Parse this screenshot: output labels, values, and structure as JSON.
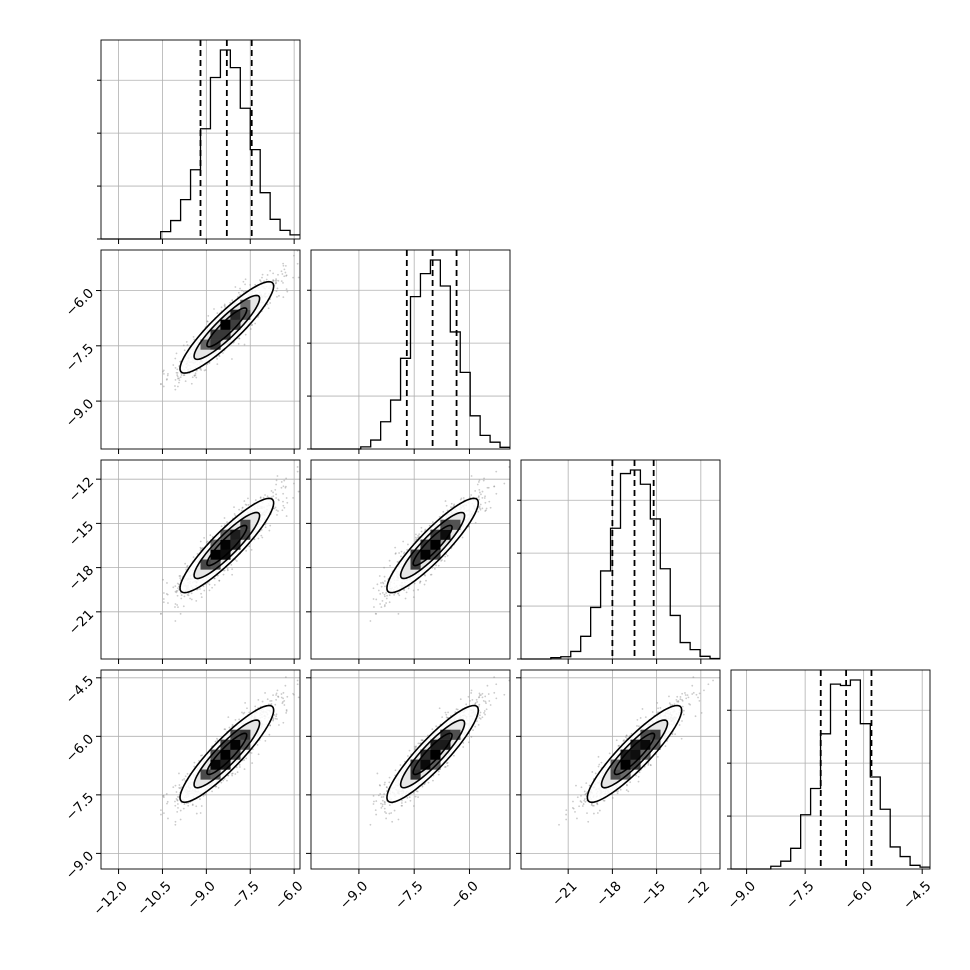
{
  "chart_data": {
    "type": "corner",
    "title": "",
    "parameters": [
      {
        "axis_range": [
          -12.6,
          -5.8
        ],
        "ticks": [
          -12.0,
          -10.5,
          -9.0,
          -7.5,
          -6.0
        ],
        "tick_labels": [
          "−12.0",
          "−10.5",
          "−9.0",
          "−7.5",
          "−6.0"
        ],
        "mean": -8.3,
        "sd": 0.8,
        "quantiles": [
          -9.2,
          -8.3,
          -7.45
        ]
      },
      {
        "axis_range": [
          -10.3,
          -4.9
        ],
        "ticks": [
          -9.0,
          -7.5,
          -6.0
        ],
        "tick_labels": [
          "−9.0",
          "−7.5",
          "−6.0"
        ],
        "mean": -7.0,
        "sd": 0.62,
        "quantiles": [
          -7.7,
          -7.0,
          -6.35
        ]
      },
      {
        "axis_range": [
          -24.2,
          -10.7
        ],
        "ticks": [
          -21,
          -18,
          -15,
          -12
        ],
        "tick_labels": [
          "−21",
          "−18",
          "−15",
          "−12"
        ],
        "mean": -16.5,
        "sd": 1.6,
        "quantiles": [
          -18.0,
          -16.5,
          -15.2
        ]
      },
      {
        "axis_range": [
          -9.4,
          -4.3
        ],
        "ticks": [
          -9.0,
          -7.5,
          -6.0,
          -4.5
        ],
        "tick_labels": [
          "−9.0",
          "−7.5",
          "−6.0",
          "−4.5"
        ],
        "mean": -6.45,
        "sd": 0.62,
        "quantiles": [
          -7.1,
          -6.45,
          -5.8
        ]
      }
    ],
    "histogram_bins": 20,
    "quantile_style": "dashed",
    "grid": true,
    "contour_levels": 3,
    "colors": {
      "line": "#000000",
      "grid": "#b0b0b0",
      "points": "#8c8c8c"
    }
  }
}
